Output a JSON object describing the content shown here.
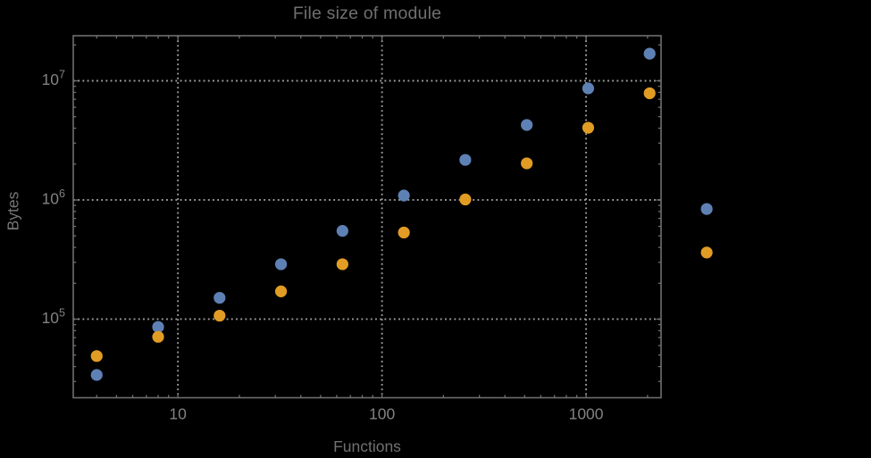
{
  "figure": {
    "background_color": "#000000",
    "frame_color": "#6e6e6e",
    "grid_color": "#9c9c9c",
    "tick_color": "#6e6e6e",
    "tick_label_color": "#828282",
    "title_color": "#6f6f6f",
    "axis_label_color": "#707070"
  },
  "chart_data": {
    "type": "scatter",
    "title": "File size of module",
    "xlabel": "Functions",
    "ylabel": "Bytes",
    "x_scale": "log",
    "y_scale": "log",
    "xlim": [
      3.07,
      2330
    ],
    "ylim": [
      21900,
      23900000
    ],
    "grid": {
      "style": "dotted",
      "at": "major-ticks-only"
    },
    "legend": "none",
    "plot_range_clipping": false,
    "x_major_ticks": [
      10,
      100,
      1000
    ],
    "x_major_tick_labels": [
      "10",
      "100",
      "1000"
    ],
    "y_major_ticks": [
      100000,
      1000000,
      10000000
    ],
    "y_major_tick_labels": [
      "10^5",
      "10^6",
      "10^7"
    ],
    "y_tick_mantissa": "10",
    "y_tick_exponents": [
      "5",
      "6",
      "7"
    ],
    "x": [
      4,
      8,
      16,
      32,
      64,
      128,
      256,
      512,
      1024,
      2048,
      3900
    ],
    "series": [
      {
        "name": "series-1-blue",
        "color": "#5e81b5",
        "marker": "circle",
        "values": [
          34000,
          86000,
          151000,
          289000,
          550000,
          1090000,
          2170000,
          4260000,
          8640000,
          16900000,
          840000
        ]
      },
      {
        "name": "series-2-orange",
        "color": "#e19c24",
        "marker": "circle",
        "values": [
          49000,
          71000,
          107000,
          171000,
          289000,
          533000,
          1010000,
          2030000,
          4040000,
          7860000,
          362000
        ]
      }
    ]
  }
}
